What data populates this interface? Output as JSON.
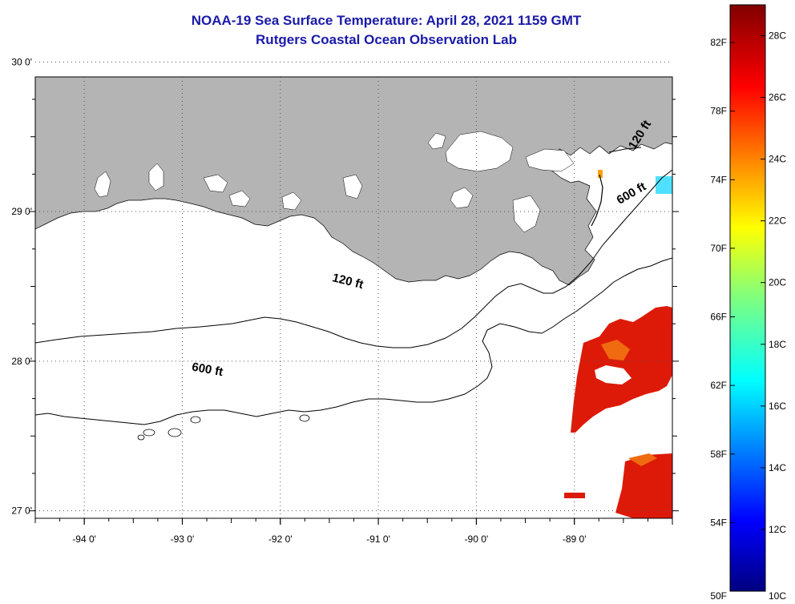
{
  "header": {
    "title": "NOAA-19 Sea Surface Temperature:  April 28, 2021 1159 GMT",
    "subtitle": "Rutgers Coastal Ocean Observation Lab"
  },
  "map": {
    "lon_range": [
      -94.5,
      -88.0
    ],
    "lat_range": [
      26.95,
      29.9
    ],
    "lon_ticks": [
      {
        "value": -94,
        "label": "-94 0'"
      },
      {
        "value": -93,
        "label": "-93 0'"
      },
      {
        "value": -92,
        "label": "-92 0'"
      },
      {
        "value": -91,
        "label": "-91 0'"
      },
      {
        "value": -90,
        "label": "-90 0'"
      },
      {
        "value": -89,
        "label": "-89 0'"
      }
    ],
    "lat_ticks": [
      {
        "value": 30,
        "label": "30 0'"
      },
      {
        "value": 29,
        "label": "29 0'"
      },
      {
        "value": 28,
        "label": "28 0'"
      },
      {
        "value": 27,
        "label": "27 0'"
      }
    ],
    "isobath_labels": [
      {
        "text": "120 ft",
        "lon": -91.32,
        "lat": 28.51,
        "angle": 14
      },
      {
        "text": "600 ft",
        "lon": -92.75,
        "lat": 27.92,
        "angle": 10
      },
      {
        "text": "120 ft",
        "lon": -88.3,
        "lat": 29.5,
        "angle": -58
      },
      {
        "text": "600 ft",
        "lon": -88.4,
        "lat": 29.1,
        "angle": -30
      }
    ],
    "colors": {
      "land": "#b4b4b4",
      "water": "#ffffff",
      "grid": "#555555"
    }
  },
  "colorbar": {
    "f_labels": [
      "82F",
      "78F",
      "74F",
      "70F",
      "66F",
      "62F",
      "58F",
      "54F",
      "50F"
    ],
    "c_labels": [
      "28C",
      "26C",
      "24C",
      "22C",
      "20C",
      "18C",
      "16C",
      "14C",
      "12C",
      "10C"
    ],
    "range_c": [
      10,
      29
    ]
  }
}
